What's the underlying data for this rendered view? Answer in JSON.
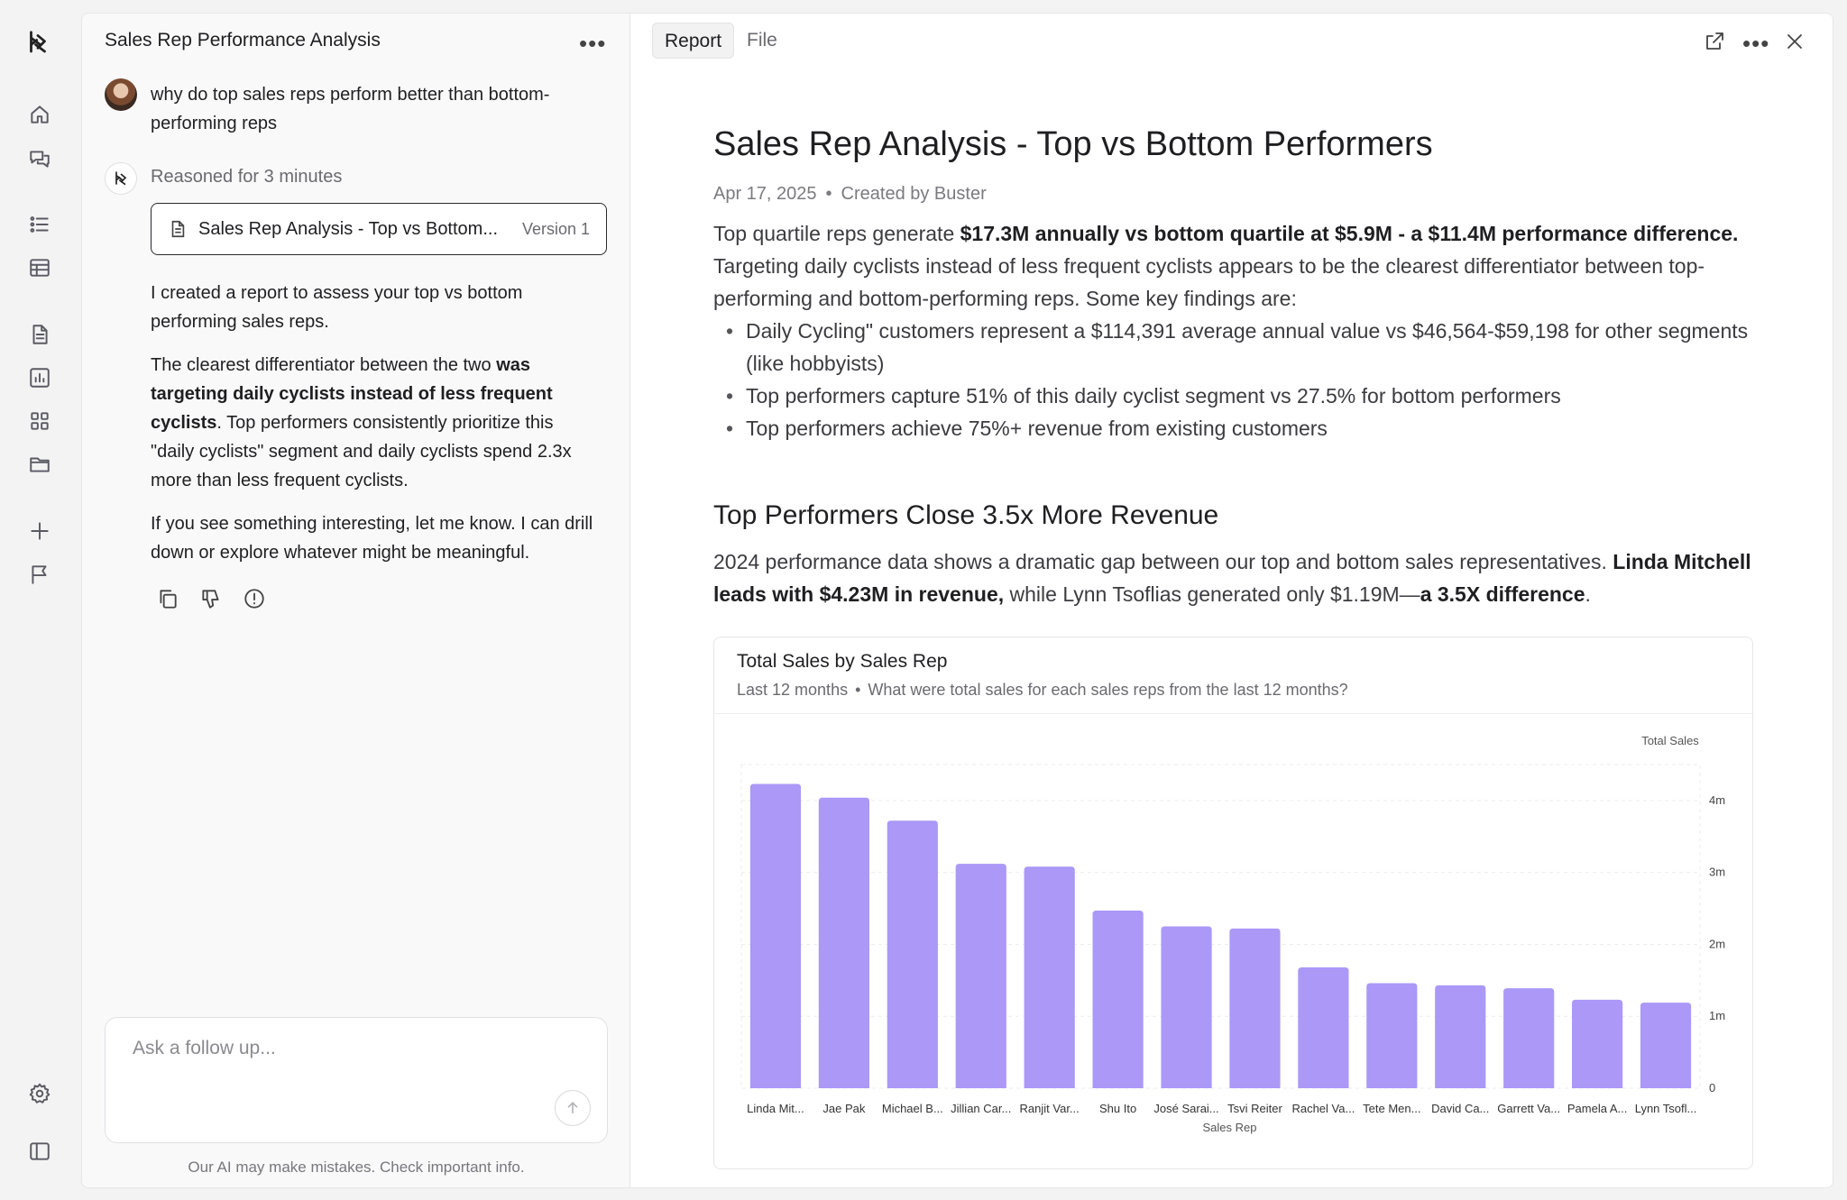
{
  "sidebar": {
    "icons": [
      "logo-icon",
      "home-icon",
      "chats-icon",
      "list-icon",
      "table-icon",
      "document-icon",
      "chart-icon",
      "grid-icon",
      "folder-icon",
      "plus-icon",
      "flag-icon",
      "settings-icon",
      "panel-toggle-icon"
    ]
  },
  "chat": {
    "title": "Sales Rep Performance Analysis",
    "user_message": "why do top sales reps perform better than bottom-performing reps",
    "reasoning": "Reasoned for 3 minutes",
    "file_card": {
      "name": "Sales Rep Analysis - Top vs Bottom...",
      "version": "Version 1"
    },
    "response": {
      "p1": "I created a report to assess your top vs bottom performing sales reps.",
      "p2_a": "The clearest differentiator between the two ",
      "p2_b": "was targeting daily cyclists instead of less frequent cyclists",
      "p2_c": ". Top performers consistently prioritize this \"daily cyclists\" segment and daily cyclists spend 2.3x more than less frequent cyclists.",
      "p3": "If you see something interesting, let me know. I can drill down or explore whatever might be meaningful."
    },
    "followup_placeholder": "Ask a follow up...",
    "disclaimer": "Our AI may make mistakes. Check important info."
  },
  "report": {
    "tabs": [
      "Report",
      "File"
    ],
    "title": "Sales Rep Analysis - Top vs Bottom Performers",
    "date": "Apr 17, 2025",
    "author": "Created by Buster",
    "intro_bold": "$17.3M annually vs bottom quartile at $5.9M - a $11.4M performance difference.",
    "intro_a": "Top quartile reps generate ",
    "intro_b": " Targeting daily cyclists instead of less frequent cyclists appears to be the clearest differentiator between top-performing and bottom-performing reps. Some key findings are:",
    "bullets": [
      "Daily Cycling\" customers represent a $114,391 average annual value vs $46,564-$59,198 for other segments (like hobbyists)",
      "Top performers capture 51% of this daily cyclist segment vs 27.5% for bottom performers",
      "Top performers achieve 75%+ revenue from existing customers"
    ],
    "section_title": "Top Performers Close 3.5x More Revenue",
    "section_a": "2024 performance data shows a dramatic gap between our top and bottom sales representatives. ",
    "section_b": "Linda Mitchell leads with $4.23M in revenue,",
    "section_c": " while Lynn Tsoflias generated only $1.19M—",
    "section_d": "a 3.5X difference",
    "section_e": ".",
    "chart_card": {
      "title": "Total Sales by Sales Rep",
      "range": "Last 12 months",
      "question": "What were total sales for each sales reps from the last 12 months?"
    }
  },
  "chart_data": {
    "type": "bar",
    "title": "Total Sales by Sales Rep",
    "xlabel": "Sales Rep",
    "ylabel": "Total Sales",
    "categories": [
      "Linda Mit...",
      "Jae Pak",
      "Michael B...",
      "Jillian Car...",
      "Ranjit Var...",
      "Shu Ito",
      "José Sarai...",
      "Tsvi Reiter",
      "Rachel Va...",
      "Tete Men...",
      "David Ca...",
      "Garrett Va...",
      "Pamela A...",
      "Lynn Tsofl..."
    ],
    "values": [
      4.23,
      4.04,
      3.72,
      3.12,
      3.08,
      2.47,
      2.25,
      2.22,
      1.68,
      1.46,
      1.43,
      1.39,
      1.23,
      1.19
    ],
    "y_unit": "m",
    "yticks": [
      "0",
      "1m",
      "2m",
      "3m",
      "4m"
    ],
    "ylim": [
      0,
      4.5
    ],
    "grid": true,
    "color": "#ab98f7"
  }
}
